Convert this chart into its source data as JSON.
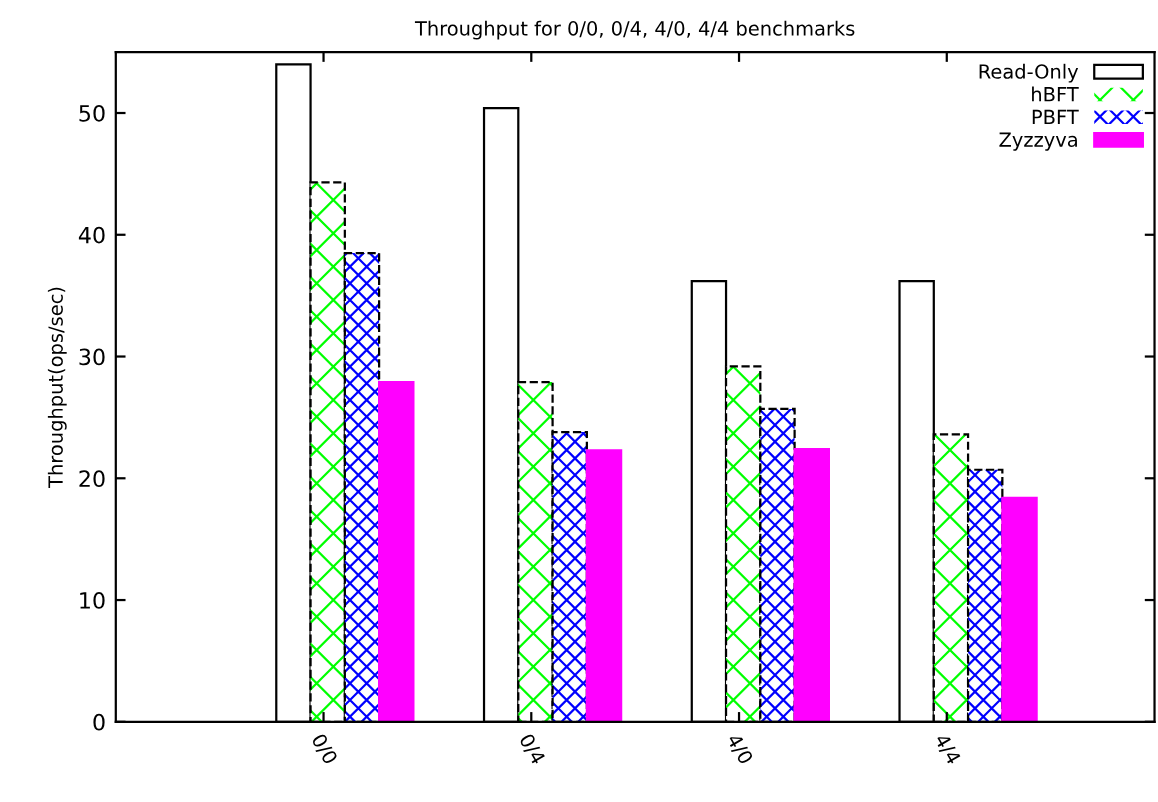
{
  "chart_data": {
    "type": "bar",
    "title": "Throughput for 0/0, 0/4, 4/0, 4/4 benchmarks",
    "ylabel": "Throughput(ops/sec)",
    "categories": [
      "0/0",
      "0/4",
      "4/0",
      "4/4"
    ],
    "series": [
      {
        "name": "Read-Only",
        "color": "#ffffff",
        "values": [
          54.0,
          50.4,
          36.2,
          36.2
        ]
      },
      {
        "name": "hBFT",
        "color": "#00ff00",
        "values": [
          44.3,
          27.9,
          29.2,
          23.6
        ]
      },
      {
        "name": "PBFT",
        "color": "#0000ff",
        "values": [
          38.5,
          23.8,
          25.7,
          20.7
        ]
      },
      {
        "name": "Zyzzyva",
        "color": "#ff00ff",
        "values": [
          27.9,
          22.3,
          22.4,
          18.4
        ]
      }
    ],
    "ylim": [
      0,
      55
    ],
    "yticks": [
      0,
      10,
      20,
      30,
      40,
      50
    ],
    "legend": "top right",
    "grid": false
  }
}
